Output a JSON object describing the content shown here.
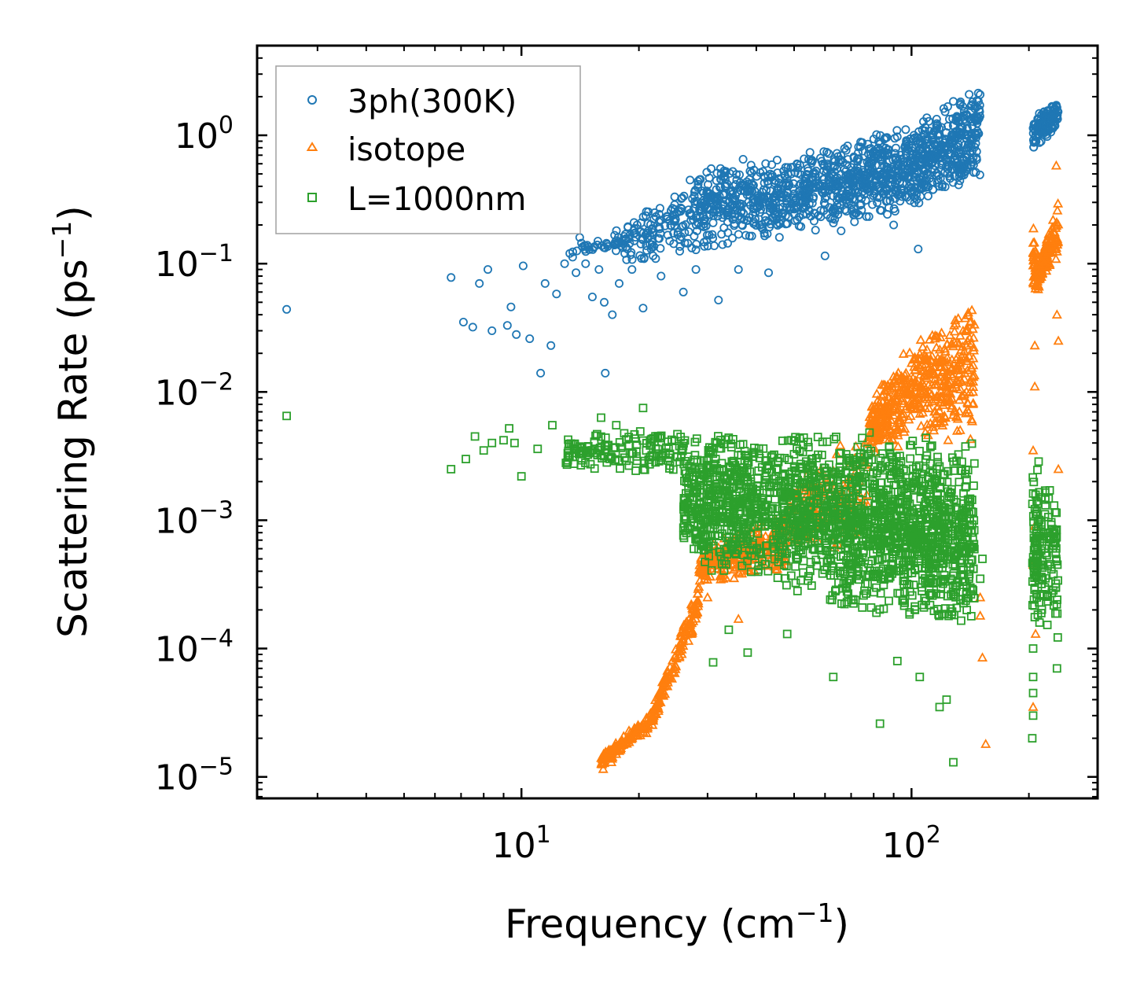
{
  "chart_data": {
    "type": "scatter",
    "xscale": "log",
    "yscale": "log",
    "xlabel": "Frequency (cm",
    "xlabel_sup": "−1",
    "xlabel_end": ")",
    "ylabel": "Scattering Rate (ps",
    "ylabel_sup": "−1",
    "ylabel_end": ")",
    "xlim": [
      2.1,
      300
    ],
    "ylim": [
      6.8e-06,
      5
    ],
    "xticks": [
      {
        "value": 10,
        "base": "10",
        "exp": "1"
      },
      {
        "value": 100,
        "base": "10",
        "exp": "2"
      }
    ],
    "yticks": [
      {
        "value": 1,
        "base": "10",
        "exp": "0"
      },
      {
        "value": 0.1,
        "base": "10",
        "exp": "−1"
      },
      {
        "value": 0.01,
        "base": "10",
        "exp": "−2"
      },
      {
        "value": 0.001,
        "base": "10",
        "exp": "−3"
      },
      {
        "value": 0.0001,
        "base": "10",
        "exp": "−4"
      },
      {
        "value": 1e-05,
        "base": "10",
        "exp": "−5"
      }
    ],
    "legend_position": "top-left",
    "series": [
      {
        "name": "3ph(300K)",
        "marker": "circle",
        "color": "#1f77b4",
        "points": [
          [
            2.5,
            0.044
          ],
          [
            6.6,
            0.078
          ],
          [
            7.1,
            0.035
          ],
          [
            7.5,
            0.032
          ],
          [
            7.8,
            0.07
          ],
          [
            8.2,
            0.09
          ],
          [
            8.4,
            0.03
          ],
          [
            9.2,
            0.033
          ],
          [
            9.4,
            0.046
          ],
          [
            9.7,
            0.028
          ],
          [
            10.1,
            0.096
          ],
          [
            10.5,
            0.026
          ],
          [
            11.2,
            0.014
          ],
          [
            11.5,
            0.07
          ],
          [
            11.9,
            0.023
          ],
          [
            12.3,
            0.058
          ],
          [
            12.9,
            0.1
          ],
          [
            13.3,
            0.12
          ],
          [
            13.8,
            0.085
          ],
          [
            14.1,
            0.16
          ],
          [
            14.6,
            0.1
          ],
          [
            15.2,
            0.055
          ],
          [
            15.8,
            0.09
          ],
          [
            16.3,
            0.05
          ],
          [
            16.4,
            0.014
          ],
          [
            17.1,
            0.04
          ],
          [
            17.8,
            0.07
          ],
          [
            18.4,
            0.12
          ],
          [
            19.2,
            0.09
          ],
          [
            19.8,
            0.2
          ],
          [
            20.5,
            0.045
          ],
          [
            21.5,
            0.13
          ],
          [
            22.8,
            0.08
          ],
          [
            24.0,
            0.15
          ],
          [
            26.0,
            0.06
          ],
          [
            28.0,
            0.09
          ],
          [
            32.0,
            0.052
          ],
          [
            36.0,
            0.09
          ],
          [
            43.0,
            0.085
          ],
          [
            60.0,
            0.115
          ],
          [
            66.0,
            0.18
          ],
          [
            90.0,
            0.2
          ],
          [
            104.0,
            0.13
          ]
        ],
        "clusters": [
          {
            "x0": 13.5,
            "x1": 18.5,
            "y_lo_0": 0.1,
            "y_hi_0": 0.15,
            "y_lo_1": 0.12,
            "y_hi_1": 0.2,
            "n": 40
          },
          {
            "x0": 18.5,
            "x1": 28,
            "y_lo_0": 0.09,
            "y_hi_0": 0.25,
            "y_lo_1": 0.12,
            "y_hi_1": 0.5,
            "n": 130
          },
          {
            "x0": 28,
            "x1": 50,
            "y_lo_0": 0.12,
            "y_hi_0": 0.65,
            "y_lo_1": 0.16,
            "y_hi_1": 0.7,
            "n": 360
          },
          {
            "x0": 50,
            "x1": 100,
            "y_lo_0": 0.16,
            "y_hi_0": 0.7,
            "y_lo_1": 0.25,
            "y_hi_1": 1.3,
            "n": 520
          },
          {
            "x0": 100,
            "x1": 150,
            "y_lo_0": 0.25,
            "y_hi_0": 1.3,
            "y_lo_1": 0.45,
            "y_hi_1": 2.6,
            "n": 380
          },
          {
            "x0": 205,
            "x1": 238,
            "y_lo_0": 0.75,
            "y_hi_0": 1.4,
            "y_lo_1": 1.1,
            "y_hi_1": 2.1,
            "n": 120
          }
        ]
      },
      {
        "name": "isotope",
        "marker": "triangle",
        "color": "#ff7f0e",
        "points": [
          [
            16.2,
            1.15e-05
          ],
          [
            17.0,
            1.3e-05
          ],
          [
            27.5,
            0.0002
          ],
          [
            30,
            0.00025
          ],
          [
            36,
            0.00017
          ],
          [
            150,
            0.00025
          ],
          [
            150,
            0.00018
          ],
          [
            152,
            8.5e-05
          ],
          [
            155,
            1.8e-05
          ],
          [
            207,
            0.011
          ],
          [
            205,
            0.0035
          ],
          [
            207,
            0.0009
          ],
          [
            205,
            0.00045
          ],
          [
            208,
            0.00013
          ],
          [
            205,
            3.5e-05
          ],
          [
            238,
            0.0025
          ],
          [
            238,
            0.025
          ],
          [
            236,
            0.04
          ],
          [
            207,
            0.023
          ],
          [
            235,
            0.58
          ]
        ],
        "clusters": [
          {
            "x0": 16,
            "x1": 21.5,
            "y_lo_0": 1.15e-05,
            "y_hi_0": 1.5e-05,
            "y_lo_1": 2.3e-05,
            "y_hi_1": 3.3e-05,
            "n": 120
          },
          {
            "x0": 21.5,
            "x1": 28.5,
            "y_lo_0": 2.3e-05,
            "y_hi_0": 3.3e-05,
            "y_lo_1": 0.00016,
            "y_hi_1": 0.00035,
            "n": 150
          },
          {
            "x0": 28.5,
            "x1": 48,
            "y_lo_0": 0.0003,
            "y_hi_0": 0.0006,
            "y_lo_1": 0.0004,
            "y_hi_1": 0.0012,
            "n": 260
          },
          {
            "x0": 48,
            "x1": 78,
            "y_lo_0": 0.0006,
            "y_hi_0": 0.002,
            "y_lo_1": 0.0006,
            "y_hi_1": 0.006,
            "n": 150
          },
          {
            "x0": 78,
            "x1": 100,
            "y_lo_0": 0.003,
            "y_hi_0": 0.009,
            "y_lo_1": 0.004,
            "y_hi_1": 0.025,
            "n": 220
          },
          {
            "x0": 100,
            "x1": 145,
            "y_lo_0": 0.004,
            "y_hi_0": 0.025,
            "y_lo_1": 0.004,
            "y_hi_1": 0.055,
            "n": 300
          },
          {
            "x0": 205,
            "x1": 212,
            "y_lo_0": 0.06,
            "y_hi_0": 0.2,
            "y_lo_1": 0.06,
            "y_hi_1": 0.09,
            "n": 50
          },
          {
            "x0": 212,
            "x1": 238,
            "y_lo_0": 0.07,
            "y_hi_0": 0.1,
            "y_lo_1": 0.1,
            "y_hi_1": 0.35,
            "n": 120
          }
        ]
      },
      {
        "name": "L=1000nm",
        "marker": "square",
        "color": "#2ca02c",
        "points": [
          [
            2.5,
            0.0065
          ],
          [
            6.6,
            0.0025
          ],
          [
            7.2,
            0.003
          ],
          [
            7.6,
            0.0045
          ],
          [
            8.0,
            0.0035
          ],
          [
            8.4,
            0.004
          ],
          [
            9.0,
            0.0042
          ],
          [
            9.3,
            0.0052
          ],
          [
            9.6,
            0.004
          ],
          [
            10.0,
            0.0022
          ],
          [
            11.0,
            0.0036
          ],
          [
            12.0,
            0.0055
          ],
          [
            13.0,
            0.0028
          ],
          [
            16.0,
            0.0063
          ],
          [
            17.5,
            0.0055
          ],
          [
            20.5,
            0.0075
          ],
          [
            22.5,
            0.0033
          ],
          [
            31.0,
            7.8e-05
          ],
          [
            34,
            0.00014
          ],
          [
            38,
            9.3e-05
          ],
          [
            48,
            0.00013
          ],
          [
            63,
            6e-05
          ],
          [
            83,
            2.6e-05
          ],
          [
            92,
            8e-05
          ],
          [
            105,
            6e-05
          ],
          [
            118,
            3.5e-05
          ],
          [
            123,
            4e-05
          ],
          [
            128,
            1.3e-05
          ],
          [
            205,
            4.5e-05
          ],
          [
            205,
            3e-05
          ],
          [
            204,
            2e-05
          ],
          [
            236,
            7e-05
          ],
          [
            205,
            0.0001
          ],
          [
            205,
            6e-05
          ],
          [
            152,
            0.0005
          ],
          [
            150,
            0.00035
          ]
        ],
        "clusters": [
          {
            "x0": 13,
            "x1": 26,
            "y_lo_0": 0.0025,
            "y_hi_0": 0.0045,
            "y_lo_1": 0.0022,
            "y_hi_1": 0.0058,
            "n": 150
          },
          {
            "x0": 26,
            "x1": 50,
            "y_lo_0": 0.0004,
            "y_hi_0": 0.0052,
            "y_lo_1": 0.00025,
            "y_hi_1": 0.0055,
            "n": 650
          },
          {
            "x0": 50,
            "x1": 100,
            "y_lo_0": 0.00025,
            "y_hi_0": 0.0055,
            "y_lo_1": 0.00015,
            "y_hi_1": 0.005,
            "n": 850
          },
          {
            "x0": 100,
            "x1": 145,
            "y_lo_0": 0.00015,
            "y_hi_0": 0.005,
            "y_lo_1": 0.00012,
            "y_hi_1": 0.004,
            "n": 500
          },
          {
            "x0": 204,
            "x1": 212,
            "y_lo_0": 0.00015,
            "y_hi_0": 0.0028,
            "y_lo_1": 0.00015,
            "y_hi_1": 0.003,
            "n": 70
          },
          {
            "x0": 212,
            "x1": 238,
            "y_lo_0": 0.00012,
            "y_hi_0": 0.003,
            "y_lo_1": 0.0001,
            "y_hi_1": 0.0025,
            "n": 90
          }
        ]
      }
    ]
  }
}
